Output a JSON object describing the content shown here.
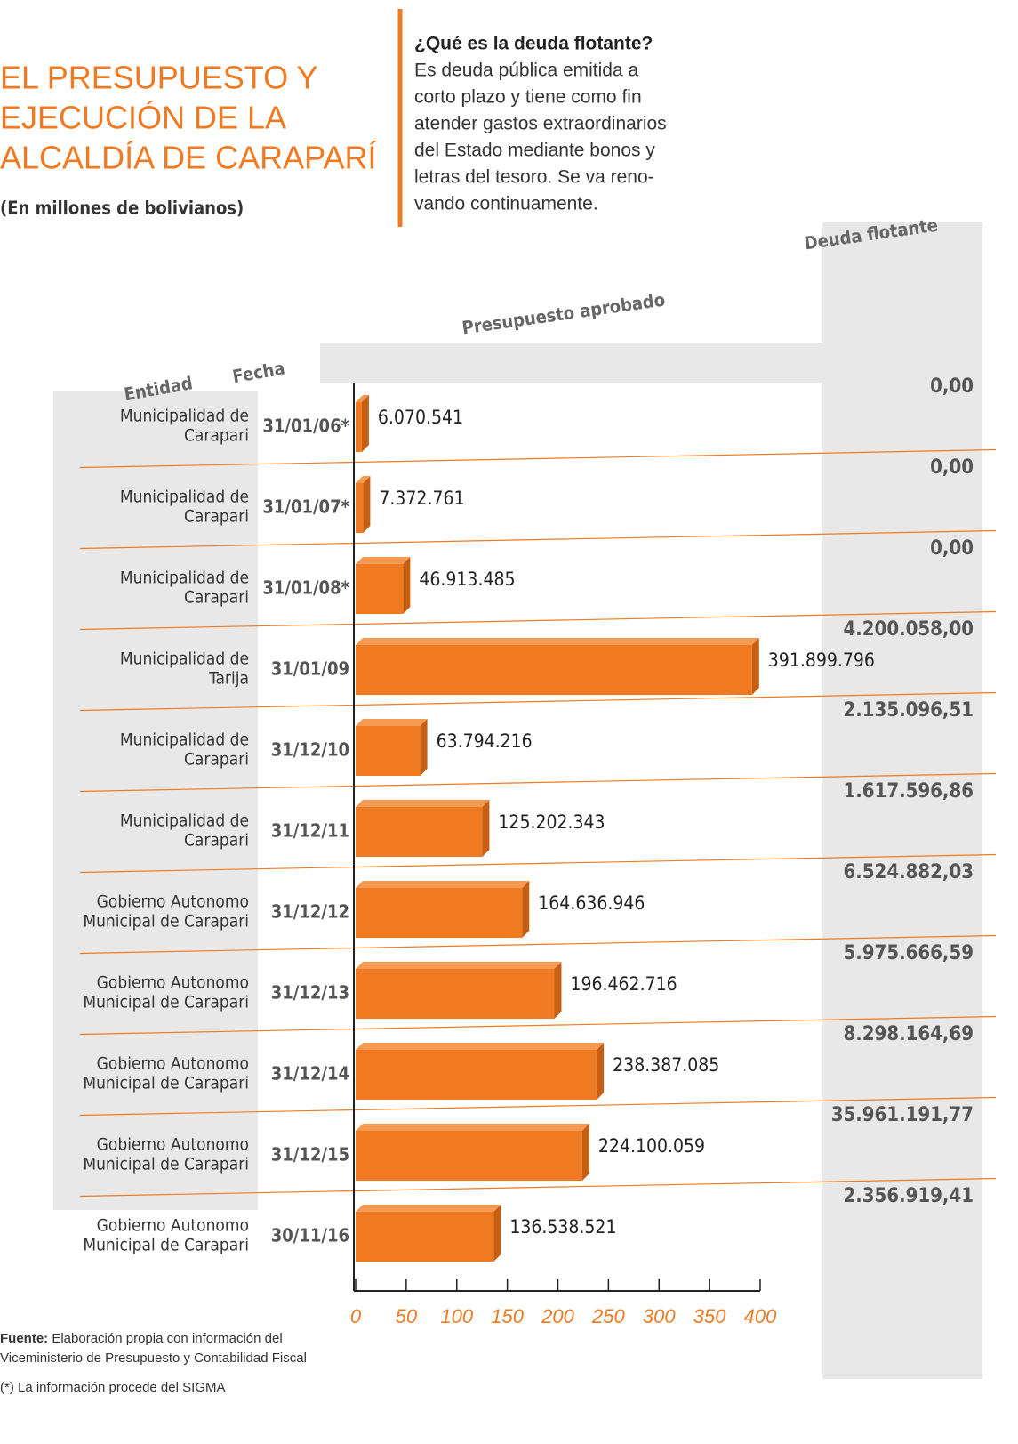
{
  "header": {
    "title": [
      "EL PRESUPUESTO Y",
      "EJECUCIÓN DE LA",
      "ALCALDÍA DE CARAPARÍ"
    ],
    "subtitle": "(En millones de bolivianos)",
    "question": "¿Qué es la deuda flotante?",
    "answer": [
      "Es deuda pública emitida a",
      "corto plazo y tiene como fin",
      "atender gastos extraordinarios",
      "del Estado mediante bonos y",
      "letras del tesoro. Se va reno-",
      "vando continuamente."
    ]
  },
  "chart_data": {
    "type": "hbar",
    "entity_header": "Entidad",
    "date_header": "Fecha",
    "value_header": "Presupuesto aprobado",
    "debt_header": "Deuda flotante",
    "categories": [
      "31/01/06*",
      "31/01/07*",
      "31/01/08*",
      "31/01/09",
      "31/12/10",
      "31/12/11",
      "31/12/12",
      "31/12/13",
      "31/12/14",
      "31/12/15",
      "30/11/16"
    ],
    "entities": [
      [
        "Municipalidad de",
        "Carapari"
      ],
      [
        "Municipalidad de",
        "Carapari"
      ],
      [
        "Municipalidad de",
        "Carapari"
      ],
      [
        "Municipalidad de",
        "Tarija"
      ],
      [
        "Municipalidad de",
        "Carapari"
      ],
      [
        "Municipalidad de",
        "Carapari"
      ],
      [
        "Gobierno Autonomo",
        "Municipal de Carapari"
      ],
      [
        "Gobierno Autonomo",
        "Municipal de Carapari"
      ],
      [
        "Gobierno Autonomo",
        "Municipal de Carapari"
      ],
      [
        "Gobierno Autonomo",
        "Municipal de Carapari"
      ],
      [
        "Gobierno Autonomo",
        "Municipal de Carapari"
      ]
    ],
    "values": [
      6.070541,
      7.372761,
      46.913485,
      391.899796,
      63.794216,
      125.202343,
      164.636946,
      196.462716,
      238.387085,
      224.100059,
      136.538521
    ],
    "value_labels": [
      "6.070.541",
      "7.372.761",
      "46.913.485",
      "391.899.796",
      "63.794.216",
      "125.202.343",
      "164.636.946",
      "196.462.716",
      "238.387.085",
      "224.100.059",
      "136.538.521"
    ],
    "debt": [
      "0,00",
      "0,00",
      "0,00",
      "4.200.058,00",
      "2.135.096,51",
      "1.617.596,86",
      "6.524.882,03",
      "5.975.666,59",
      "8.298.164,69",
      "35.961.191,77",
      "2.356.919,41"
    ],
    "color": "#f07a22",
    "xlim": [
      0,
      400
    ],
    "xticks": [
      0,
      50,
      100,
      150,
      200,
      250,
      300,
      350,
      400
    ]
  },
  "footer": {
    "source_label": "Fuente:",
    "source": [
      "Elaboración propia con información del",
      "Viceministerio de Presupuesto y Contabilidad Fiscal"
    ],
    "note": "(*) La información procede del SIGMA"
  }
}
